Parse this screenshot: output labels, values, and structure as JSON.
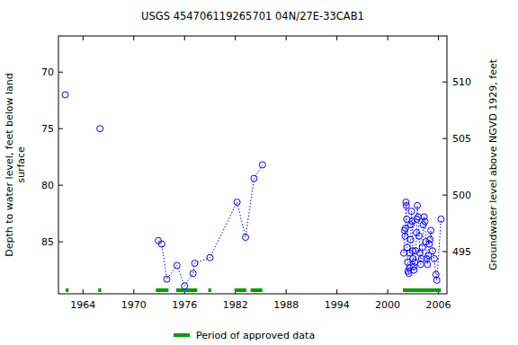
{
  "chart_data": {
    "type": "line",
    "title": "USGS 454706119265701 04N/27E-33CAB1",
    "y_label": "Depth to water level, feet below land surface",
    "y2_label": "Groundwater level above NGVD 1929, feet",
    "xlim": [
      1961.1,
      2007.0
    ],
    "xticks": [
      1964,
      1970,
      1976,
      1982,
      1988,
      1994,
      2000,
      2006
    ],
    "ylim": [
      89.6,
      66.8
    ],
    "yticks": [
      70,
      75,
      80,
      85
    ],
    "y2lim": [
      491.27,
      514.07
    ],
    "y2ticks": [
      495,
      500,
      505,
      510
    ],
    "x": [
      1961.9,
      null,
      1966.0,
      null,
      1972.9,
      1973.3,
      1973.9,
      1975.1,
      1976.0,
      1977.0,
      1977.2,
      1979.0,
      1982.2,
      1983.2,
      1984.2,
      1985.2,
      null,
      2001.9,
      2002.0,
      2002.05,
      2002.1,
      2002.15,
      2002.2,
      2002.25,
      2002.3,
      2002.35,
      2002.4,
      2002.5,
      2002.55,
      2002.6,
      2002.7,
      2002.75,
      2002.8,
      2002.9,
      2002.95,
      2003.0,
      2003.05,
      2003.1,
      2003.2,
      2003.3,
      2003.4,
      2003.45,
      2003.5,
      2003.6,
      2003.7,
      2003.8,
      2003.9,
      2004.0,
      2004.1,
      2004.2,
      2004.3,
      2004.4,
      2004.5,
      2004.6,
      2004.7,
      2004.8,
      2004.9,
      2005.0,
      2005.1,
      2005.3,
      2005.5,
      2005.7,
      2005.8,
      2006.3
    ],
    "series": [
      {
        "color": "#0000ff",
        "marker": "circle",
        "line_style": "dotted",
        "values": [
          72.0,
          null,
          75.0,
          null,
          84.9,
          85.2,
          88.3,
          87.1,
          88.9,
          87.8,
          86.9,
          86.4,
          81.5,
          84.6,
          79.4,
          78.2,
          null,
          86.0,
          84.0,
          84.5,
          83.8,
          81.5,
          81.8,
          83.0,
          85.5,
          86.8,
          87.6,
          87.8,
          87.3,
          86.0,
          84.8,
          83.5,
          82.3,
          83.2,
          85.8,
          86.5,
          87.2,
          87.5,
          86.8,
          85.8,
          84.2,
          83.0,
          81.8,
          82.8,
          84.5,
          86.0,
          87.0,
          86.5,
          85.5,
          83.5,
          82.8,
          83.2,
          85.0,
          86.5,
          87.0,
          86.2,
          85.2,
          84.8,
          84.0,
          85.8,
          86.5,
          87.9,
          88.4,
          83.0
        ]
      }
    ],
    "approved_periods": {
      "label": "Period of approved data",
      "color": "#00a000",
      "ranges": [
        [
          1961.95,
          1962.3
        ],
        [
          1965.8,
          1966.15
        ],
        [
          1972.6,
          1974.1
        ],
        [
          1975.0,
          1977.5
        ],
        [
          1978.8,
          1979.15
        ],
        [
          1981.9,
          1983.3
        ],
        [
          1983.8,
          1985.2
        ],
        [
          2001.8,
          2006.3
        ]
      ]
    }
  }
}
